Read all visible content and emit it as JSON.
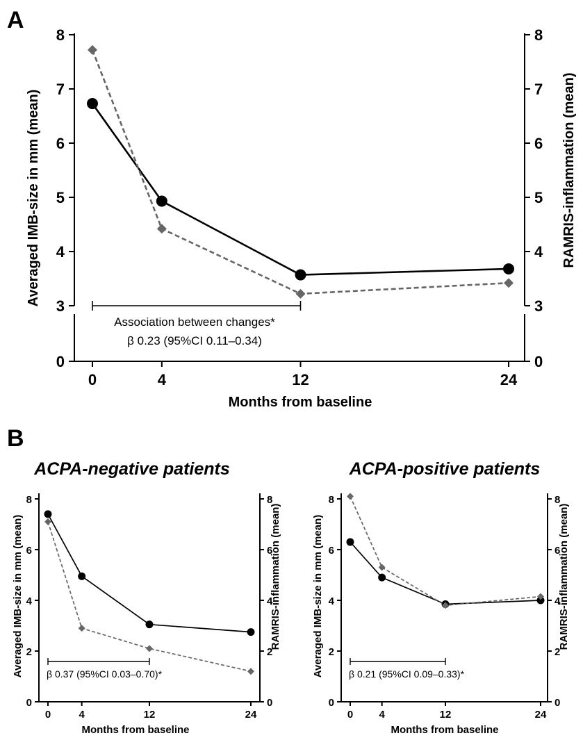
{
  "panel_a_letter": "A",
  "panel_b_letter": "B",
  "colors": {
    "imb_series": "#000000",
    "ramris_series": "#666666"
  },
  "chart_data": [
    {
      "type": "line",
      "panel": "A",
      "title": "",
      "xlabel": "Months from baseline",
      "ylabel": "Averaged IMB-size in mm (mean)",
      "y2label": "RAMRIS-inflammation (mean)",
      "x": [
        0,
        4,
        12,
        24
      ],
      "x_ticks": [
        "0",
        "4",
        "12",
        "24"
      ],
      "y_ticks": [
        "0",
        "3",
        "4",
        "5",
        "6",
        "7",
        "8"
      ],
      "y2_ticks": [
        "0",
        "3",
        "4",
        "5",
        "6",
        "7",
        "8"
      ],
      "ylim": [
        0,
        8
      ],
      "axis_break": [
        0,
        3
      ],
      "series": [
        {
          "style": "solid-circle",
          "axis": "left",
          "values": [
            6.73,
            4.93,
            3.57,
            3.68
          ]
        },
        {
          "style": "dashed-diamond",
          "axis": "right",
          "values": [
            7.72,
            4.42,
            3.22,
            3.42
          ]
        }
      ],
      "annotation": {
        "line1": "Association between changes*",
        "line2": "β 0.23 (95%CI 0.11–0.34)",
        "x_from": 0,
        "x_to": 12
      }
    },
    {
      "type": "line",
      "panel": "B-left",
      "title": "ACPA-negative patients",
      "xlabel": "Months from baseline",
      "ylabel": "Averaged IMB-size in mm (mean)",
      "y2label": "RAMRIS-inflammation (mean)",
      "x": [
        0,
        4,
        12,
        24
      ],
      "x_ticks": [
        "0",
        "4",
        "12",
        "24"
      ],
      "y_ticks": [
        "0",
        "2",
        "4",
        "6",
        "8"
      ],
      "y2_ticks": [
        "0",
        "2",
        "4",
        "6",
        "8"
      ],
      "ylim": [
        0,
        8.3
      ],
      "series": [
        {
          "style": "solid-circle",
          "axis": "left",
          "values": [
            7.4,
            4.95,
            3.05,
            2.75
          ]
        },
        {
          "style": "dashed-diamond",
          "axis": "right",
          "values": [
            7.1,
            2.9,
            2.1,
            1.2
          ]
        }
      ],
      "annotation": {
        "line1": "β 0.37 (95%CI 0.03–0.70)*",
        "x_from": 0,
        "x_to": 12
      }
    },
    {
      "type": "line",
      "panel": "B-right",
      "title": "ACPA-positive patients",
      "xlabel": "Months from baseline",
      "ylabel": "Averaged IMB-size in mm (mean)",
      "y2label": "RAMRIS-inflammation (mean)",
      "x": [
        0,
        4,
        12,
        24
      ],
      "x_ticks": [
        "0",
        "4",
        "12",
        "24"
      ],
      "y_ticks": [
        "0",
        "2",
        "4",
        "6",
        "8"
      ],
      "y2_ticks": [
        "0",
        "2",
        "4",
        "6",
        "8"
      ],
      "ylim": [
        0,
        8.3
      ],
      "series": [
        {
          "style": "solid-circle",
          "axis": "left",
          "values": [
            6.3,
            4.9,
            3.85,
            4.0
          ]
        },
        {
          "style": "dashed-diamond",
          "axis": "right",
          "values": [
            8.1,
            5.3,
            3.8,
            4.15
          ]
        }
      ],
      "annotation": {
        "line1": "β 0.21 (95%CI 0.09–0.33)*",
        "x_from": 0,
        "x_to": 12
      }
    }
  ]
}
